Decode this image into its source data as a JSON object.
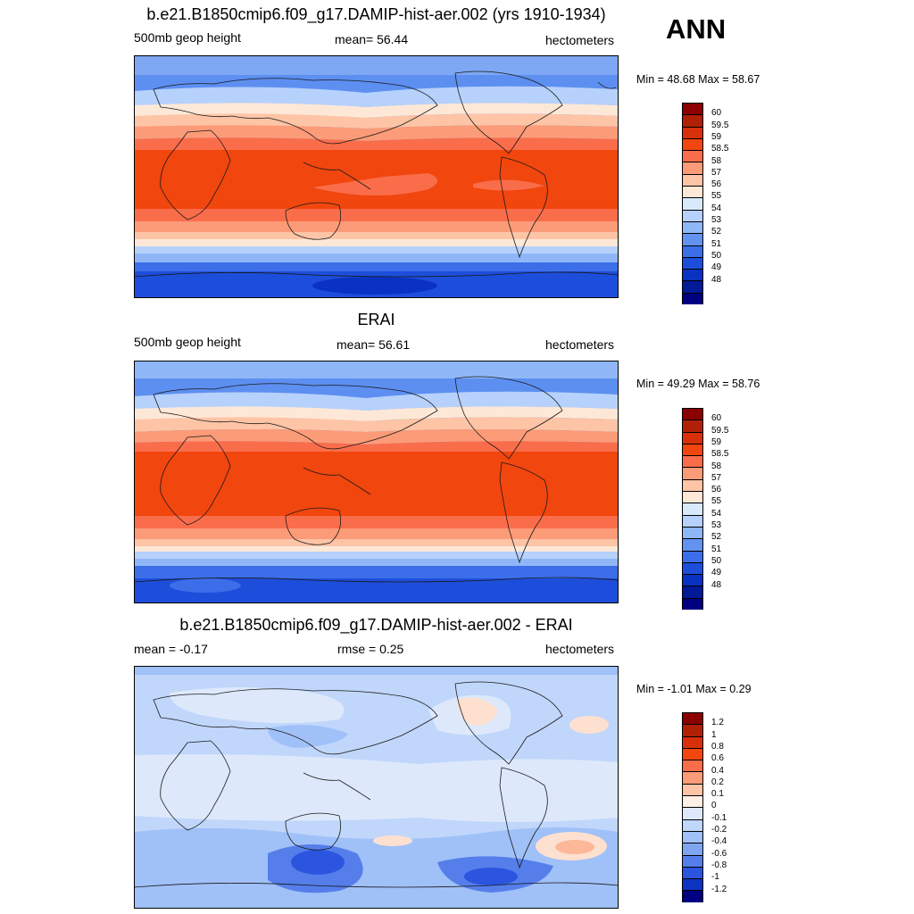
{
  "season": "ANN",
  "panels": [
    {
      "title": "b.e21.B1850cmip6.f09_g17.DAMIP-hist-aer.002 (yrs 1910-1934)",
      "left_label": "500mb geop height",
      "center_label": "mean=  56.44",
      "right_label": "hectometers",
      "minmax": "Min =  48.68 Max =  58.67",
      "colorbar": {
        "colors": [
          "#8b0000",
          "#b02006",
          "#d8300a",
          "#f1460e",
          "#fa6d4b",
          "#fc9b78",
          "#fdc4a6",
          "#fde8d8",
          "#d8e9fb",
          "#b6d1fb",
          "#8fb7f8",
          "#6392f1",
          "#3c6ee9",
          "#1d4edb",
          "#0a32c2",
          "#001a98",
          "#000080"
        ],
        "labels": [
          "60",
          "59.5",
          "59",
          "58.5",
          "58",
          "57",
          "56",
          "55",
          "54",
          "53",
          "52",
          "51",
          "50",
          "49",
          "48"
        ]
      }
    },
    {
      "title": "ERAI",
      "left_label": "500mb geop height",
      "center_label": "mean=  56.61",
      "right_label": "hectometers",
      "minmax": "Min =  49.29 Max =  58.76",
      "colorbar": {
        "colors": [
          "#8b0000",
          "#b02006",
          "#d8300a",
          "#f1460e",
          "#fa6d4b",
          "#fc9b78",
          "#fdc4a6",
          "#fde8d8",
          "#d8e9fb",
          "#b6d1fb",
          "#8fb7f8",
          "#6392f1",
          "#3c6ee9",
          "#1d4edb",
          "#0a32c2",
          "#001a98",
          "#000080"
        ],
        "labels": [
          "60",
          "59.5",
          "59",
          "58.5",
          "58",
          "57",
          "56",
          "55",
          "54",
          "53",
          "52",
          "51",
          "50",
          "49",
          "48"
        ]
      }
    },
    {
      "title": "b.e21.B1850cmip6.f09_g17.DAMIP-hist-aer.002 - ERAI",
      "left_label": "mean =  -0.17",
      "center_label": "rmse =   0.25",
      "right_label": "hectometers",
      "minmax": "Min =  -1.01 Max =   0.29",
      "colorbar": {
        "colors": [
          "#8b0000",
          "#b02006",
          "#d8300a",
          "#f1460e",
          "#fa6d4b",
          "#fc9b78",
          "#fdc4a6",
          "#fff0e6",
          "#dde9fb",
          "#c0d6fb",
          "#a0c0f8",
          "#7ea5f2",
          "#557eea",
          "#2b55df",
          "#0d34c0",
          "#000080"
        ],
        "labels": [
          "1.2",
          "1",
          "0.8",
          "0.6",
          "0.4",
          "0.2",
          "0.1",
          "0",
          "-0.1",
          "-0.2",
          "-0.4",
          "-0.6",
          "-0.8",
          "-1",
          "-1.2"
        ]
      }
    }
  ],
  "colors": {
    "warm_dark": "#f04e1c",
    "warm_mid": "#fb8a5c",
    "warm_light": "#fdc3a6",
    "neutral": "#fde8d8",
    "cool_light": "#d8e9fb",
    "cool_mid": "#8fb7f8",
    "cool_dark": "#2450dd",
    "cool_darker": "#0a32c2"
  }
}
